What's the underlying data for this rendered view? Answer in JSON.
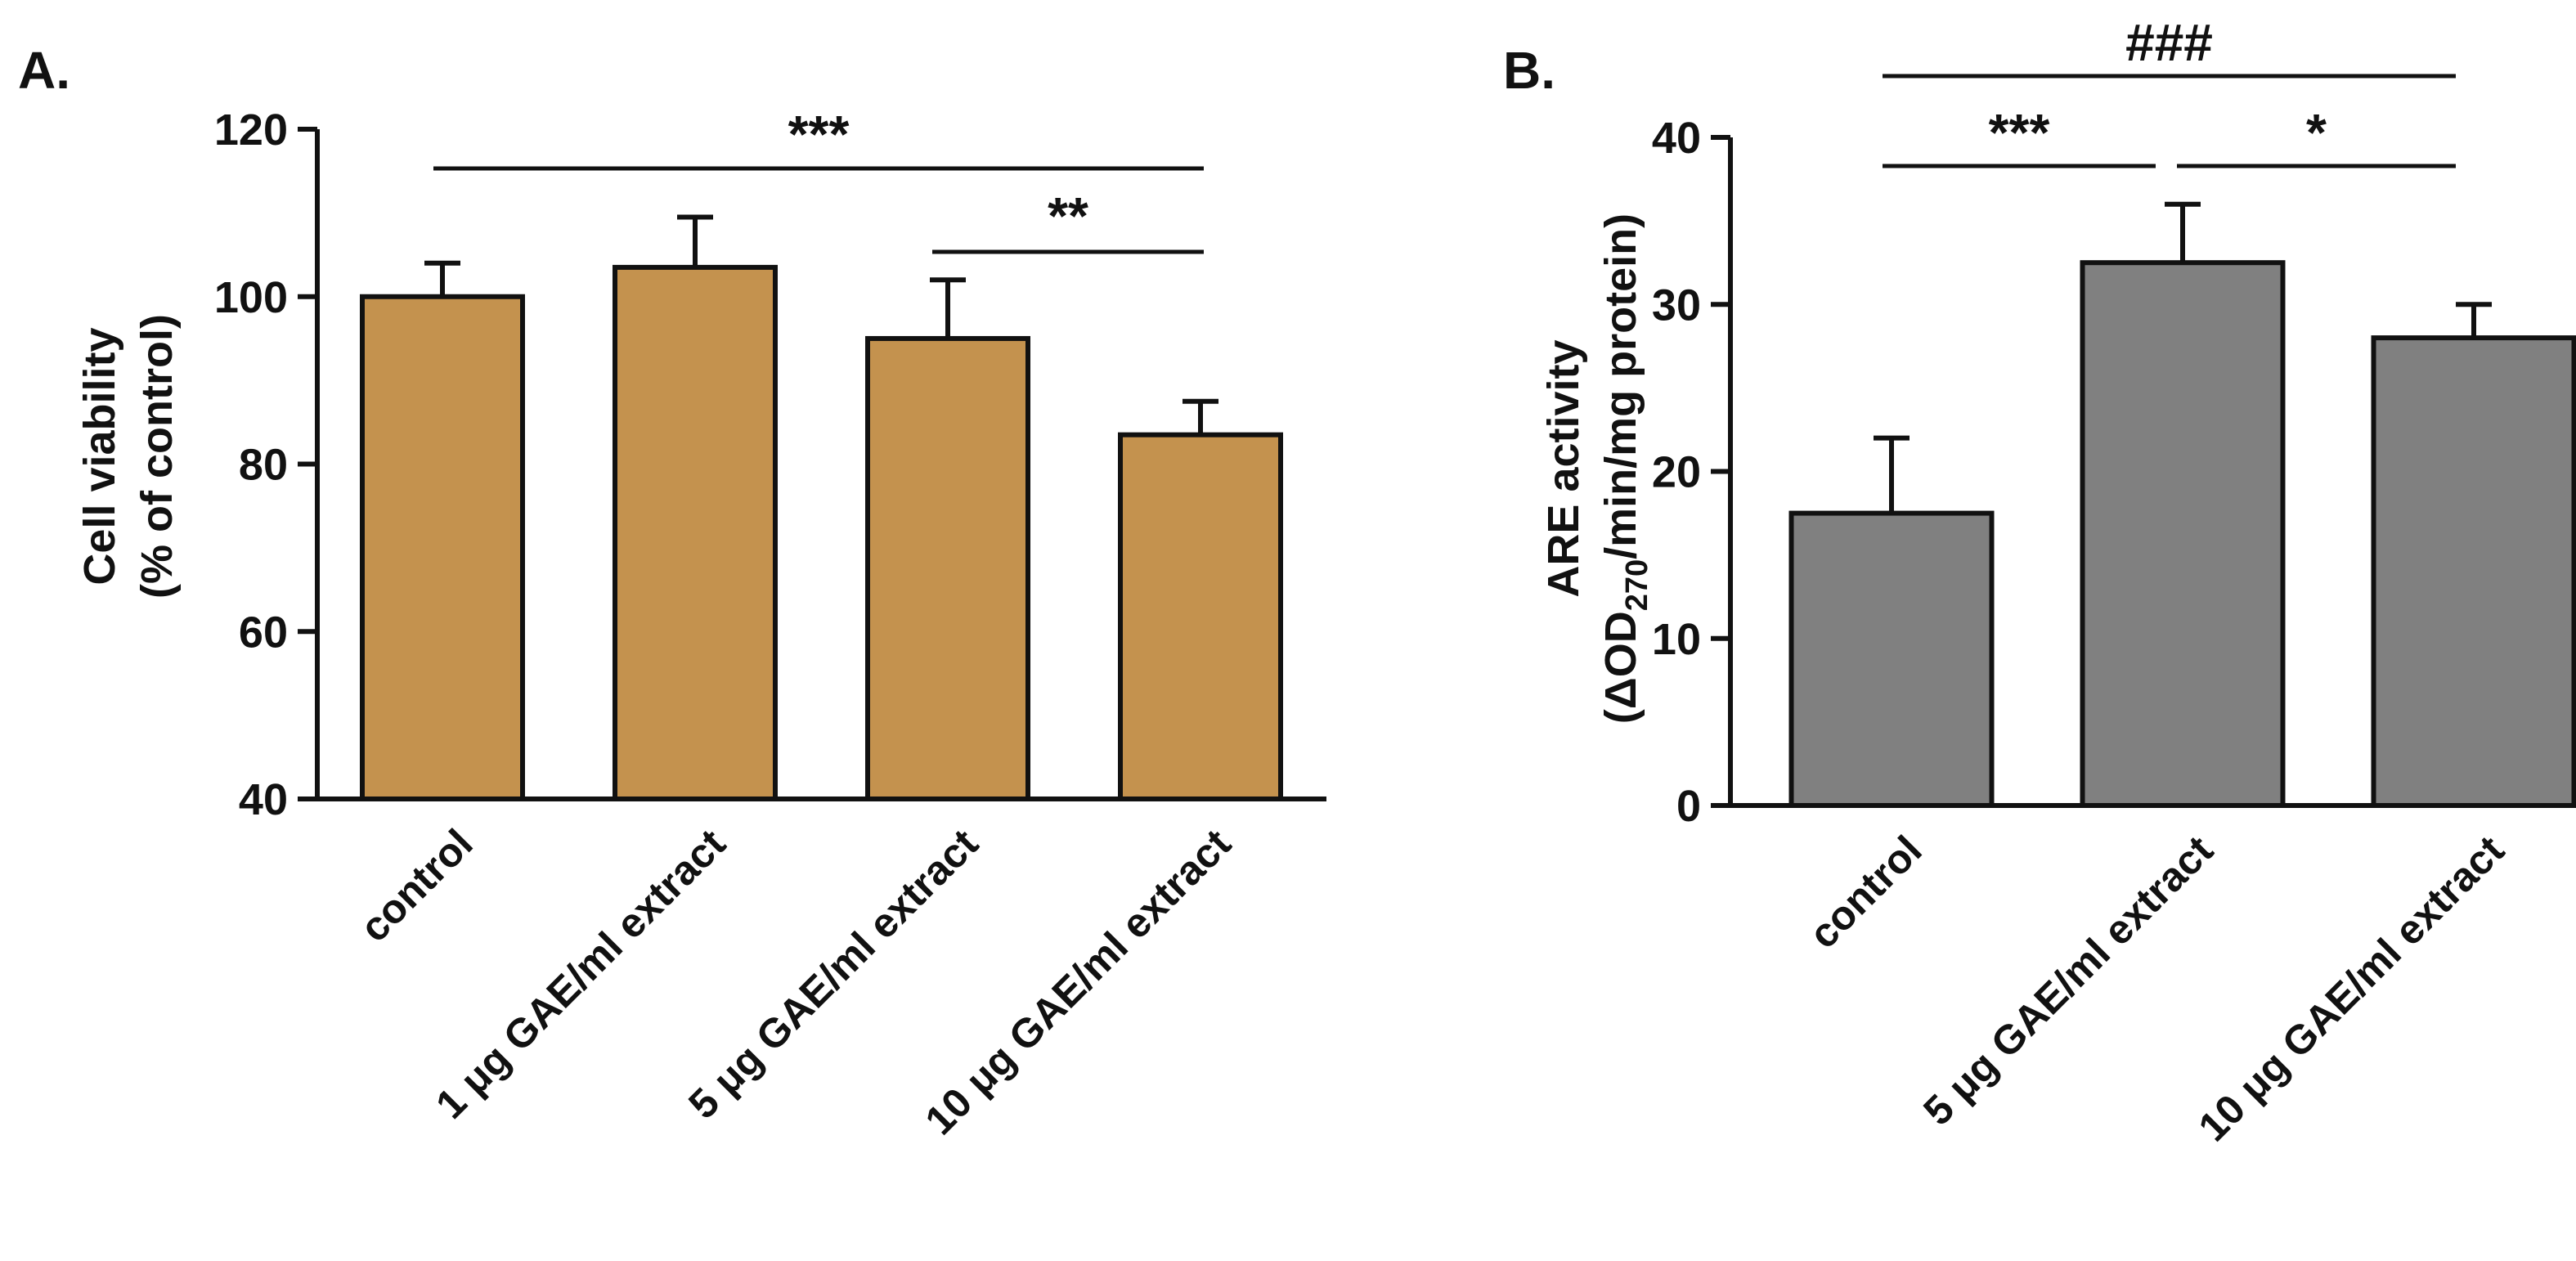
{
  "colors": {
    "panel_a_bar": "#C4924E",
    "panel_b_bar": "#808080",
    "ink": "#111111"
  },
  "chart_data": [
    {
      "panel": "A.",
      "type": "bar",
      "ylabel_line1": "Cell viability",
      "ylabel_line2": "(% of control)",
      "ylim": [
        40,
        120
      ],
      "yticks": [
        40,
        60,
        80,
        100,
        120
      ],
      "categories": [
        "control",
        "1 μg GAE/ml extract",
        "5 μg GAE/ml extract",
        "10 μg GAE/ml extract"
      ],
      "values": [
        100,
        103.5,
        95,
        83.5
      ],
      "errors": [
        4,
        6,
        7,
        4
      ],
      "grid": false,
      "annotations": [
        {
          "from": 0,
          "to": 3,
          "label": "***"
        },
        {
          "from": 2,
          "to": 3,
          "label": "**"
        }
      ]
    },
    {
      "panel": "B.",
      "type": "bar",
      "ylabel_line1": "ARE activity",
      "ylabel_line2_prefix": "(ΔOD",
      "ylabel_line2_sub": "270",
      "ylabel_line2_suffix": "/min/mg protein)",
      "ylim": [
        0,
        40
      ],
      "yticks": [
        0,
        10,
        20,
        30,
        40
      ],
      "categories": [
        "control",
        "5 μg GAE/ml extract",
        "10 μg GAE/ml extract"
      ],
      "values": [
        17.5,
        32.5,
        28
      ],
      "errors": [
        4.5,
        3.5,
        2
      ],
      "grid": false,
      "annotations": [
        {
          "from": 0,
          "to": 2,
          "label": "###"
        },
        {
          "from": 0,
          "to": 1,
          "label": "***"
        },
        {
          "from": 1,
          "to": 2,
          "label": "*"
        }
      ]
    }
  ]
}
